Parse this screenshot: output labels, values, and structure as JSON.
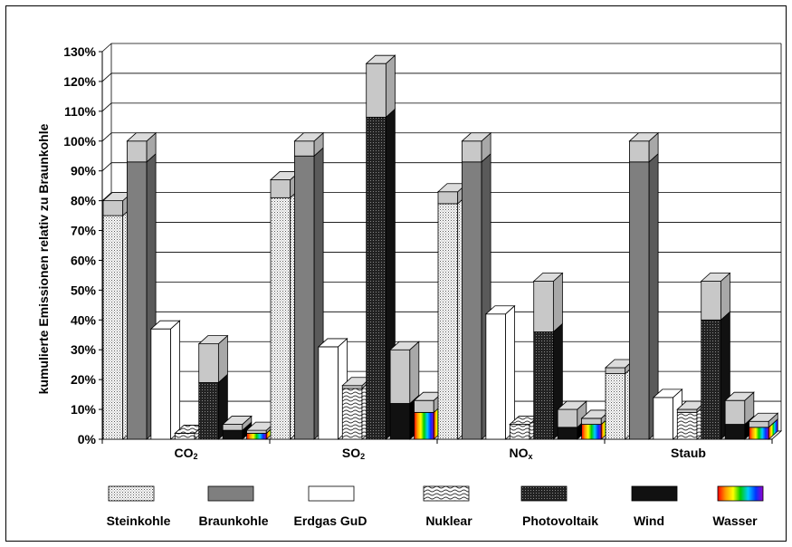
{
  "chart_data": {
    "type": "bar",
    "subtype": "3d-clustered-stacked",
    "ylabel": "kumulierte Emissionen relativ zu Braunkohle",
    "ylim": [
      0,
      130
    ],
    "ytick_step": 10,
    "yticks": [
      "0%",
      "10%",
      "20%",
      "30%",
      "40%",
      "50%",
      "60%",
      "70%",
      "80%",
      "90%",
      "100%",
      "110%",
      "120%",
      "130%"
    ],
    "grid": true,
    "legend_position": "bottom",
    "categories": [
      {
        "base": "CO",
        "sub": "2"
      },
      {
        "base": "SO",
        "sub": "2"
      },
      {
        "base": "NO",
        "sub": "x"
      },
      {
        "base": "Staub",
        "sub": ""
      }
    ],
    "stack_note": "each bar: lower segment = pattern value, upper grey cap = total",
    "series": [
      {
        "name": "Steinkohle",
        "pattern": "dots",
        "bottom": [
          75,
          81,
          79,
          22
        ],
        "total": [
          80,
          87,
          83,
          24
        ]
      },
      {
        "name": "Braunkohle",
        "pattern": "grey",
        "bottom": [
          93,
          95,
          93,
          93
        ],
        "total": [
          100,
          100,
          100,
          100
        ]
      },
      {
        "name": "Erdgas GuD",
        "pattern": "white",
        "bottom": [
          37,
          31,
          42,
          14
        ],
        "total": [
          37,
          31,
          42,
          14
        ]
      },
      {
        "name": "Nuklear",
        "pattern": "waves",
        "bottom": [
          2,
          17,
          5,
          9
        ],
        "total": [
          2,
          18,
          5,
          10
        ]
      },
      {
        "name": "Photovoltaik",
        "pattern": "crosshatch",
        "bottom": [
          19,
          108,
          36,
          40
        ],
        "total": [
          32,
          126,
          53,
          53
        ]
      },
      {
        "name": "Wind",
        "pattern": "black",
        "bottom": [
          3,
          12,
          4,
          5
        ],
        "total": [
          5,
          30,
          10,
          13
        ]
      },
      {
        "name": "Wasser",
        "pattern": "rainbow",
        "bottom": [
          2,
          9,
          5,
          4
        ],
        "total": [
          3,
          13,
          7,
          6
        ]
      }
    ],
    "colors": {
      "grey": "#7f7f7f",
      "cap": "#c8c8c8",
      "black": "#111111",
      "white": "#ffffff"
    }
  }
}
